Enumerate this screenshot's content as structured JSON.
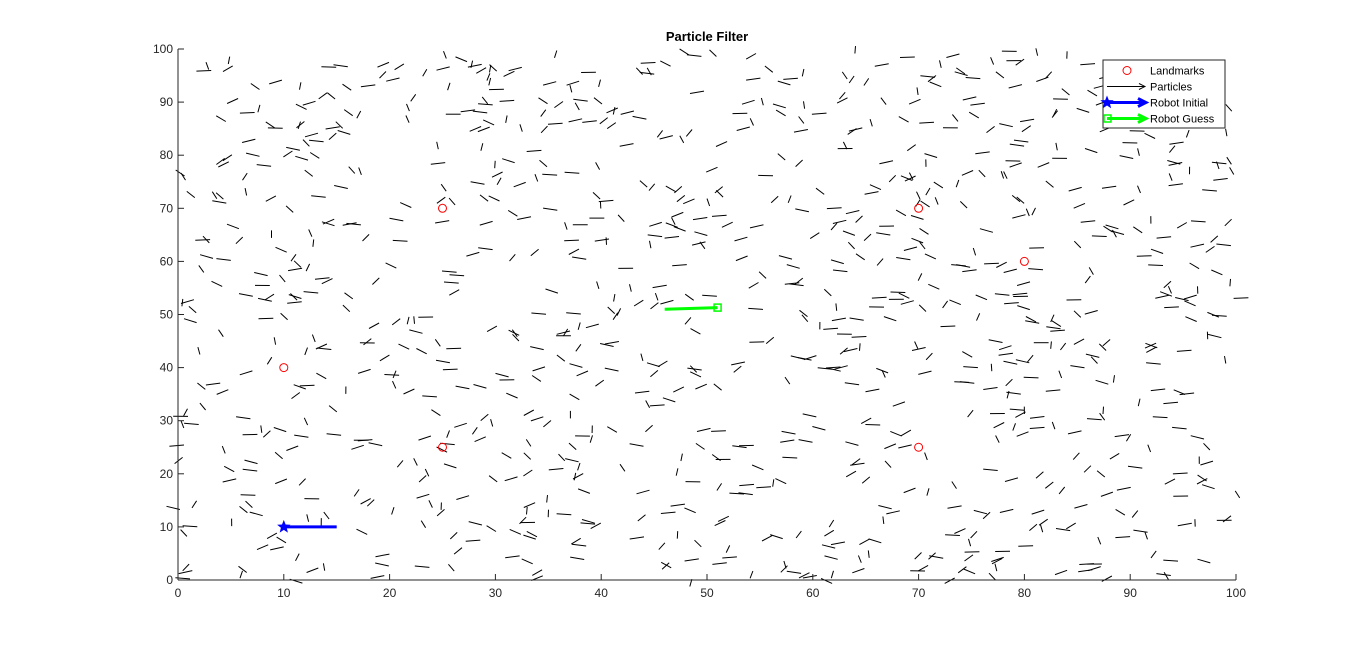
{
  "chart_data": {
    "type": "scatter",
    "title": "Particle Filter",
    "xlabel": "",
    "ylabel": "",
    "xlim": [
      0,
      100
    ],
    "ylim": [
      0,
      100
    ],
    "xticks": [
      0,
      10,
      20,
      30,
      40,
      50,
      60,
      70,
      80,
      90,
      100
    ],
    "yticks": [
      0,
      10,
      20,
      30,
      40,
      50,
      60,
      70,
      80,
      90,
      100
    ],
    "grid": false,
    "legend_position": "top-right",
    "legend": [
      {
        "label": "Landmarks",
        "style": "red-circle"
      },
      {
        "label": "Particles",
        "style": "black-arrow"
      },
      {
        "label": "Robot Initial",
        "style": "blue-star-arrow"
      },
      {
        "label": "Robot Guess",
        "style": "green-square-arrow"
      }
    ],
    "landmarks": [
      {
        "x": 25,
        "y": 70
      },
      {
        "x": 70,
        "y": 70
      },
      {
        "x": 80,
        "y": 60
      },
      {
        "x": 10,
        "y": 40
      },
      {
        "x": 25,
        "y": 25
      },
      {
        "x": 70,
        "y": 25
      }
    ],
    "robot_initial": {
      "x": 10,
      "y": 10,
      "dx": 5,
      "dy": 0
    },
    "robot_guess": {
      "x": 51,
      "y": 51.3,
      "dx": -5,
      "dy": -0.3
    },
    "particles": {
      "count": 1000,
      "distribution": "uniform",
      "x_range": [
        0,
        100
      ],
      "y_range": [
        0,
        100
      ],
      "arrow_length": 1.4
    },
    "colors": {
      "landmarks": "#ff0000",
      "particles": "#000000",
      "robot_initial": "#0000ff",
      "robot_guess": "#00ff00",
      "axes": "#262626"
    }
  }
}
